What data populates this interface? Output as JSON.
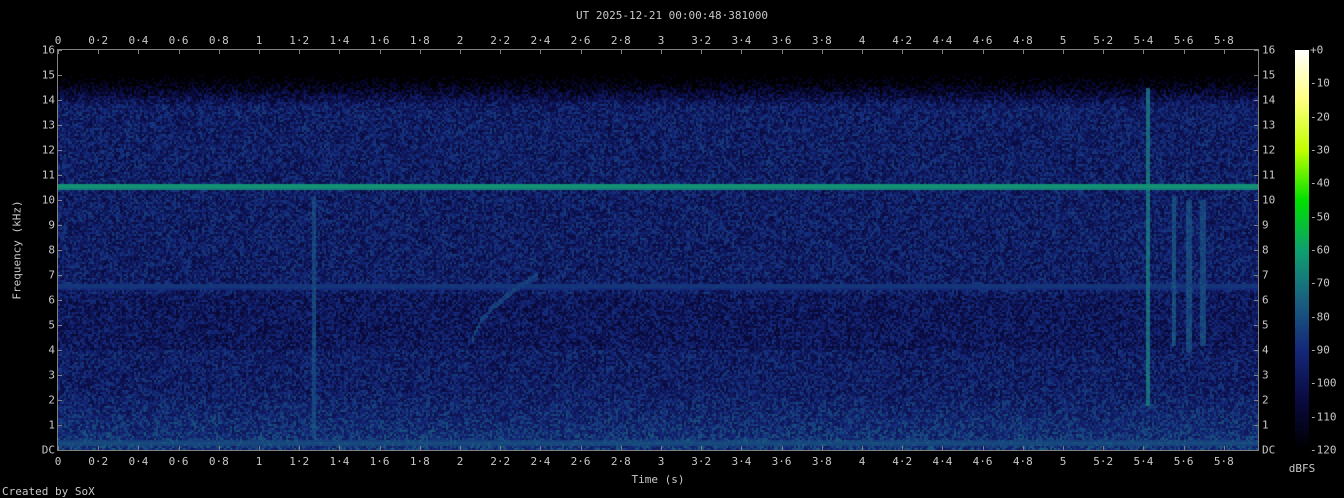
{
  "chart_data": {
    "type": "heatmap",
    "title": "UT 2025-12-21 00:00:48·381000",
    "xlabel": "Time (s)",
    "ylabel": "Frequency (kHz)",
    "xlim": [
      0,
      5.97
    ],
    "ylim": [
      0,
      16
    ],
    "x_ticks": [
      0,
      0.2,
      0.4,
      0.6,
      0.8,
      1,
      1.2,
      1.4,
      1.6,
      1.8,
      2,
      2.2,
      2.4,
      2.6,
      2.8,
      3,
      3.2,
      3.4,
      3.6,
      3.8,
      4,
      4.2,
      4.4,
      4.6,
      4.8,
      5,
      5.2,
      5.4,
      5.6,
      5.8
    ],
    "x_tick_labels": [
      "0",
      "0·2",
      "0·4",
      "0·6",
      "0·8",
      "1",
      "1·2",
      "1·4",
      "1·6",
      "1·8",
      "2",
      "2·2",
      "2·4",
      "2·6",
      "2·8",
      "3",
      "3·2",
      "3·4",
      "3·6",
      "3·8",
      "4",
      "4·2",
      "4·4",
      "4·6",
      "4·8",
      "5",
      "5·2",
      "5·4",
      "5·6",
      "5·8"
    ],
    "y_ticks": [
      0,
      1,
      2,
      3,
      4,
      5,
      6,
      7,
      8,
      9,
      10,
      11,
      12,
      13,
      14,
      15,
      16
    ],
    "y_tick_labels": [
      "DC",
      "1",
      "2",
      "3",
      "4",
      "5",
      "6",
      "7",
      "8",
      "9",
      "10",
      "11",
      "12",
      "13",
      "14",
      "15",
      "16"
    ],
    "colorbar": {
      "unit": "dBFS",
      "range": [
        -120,
        0
      ],
      "ticks": [
        0,
        -10,
        -20,
        -30,
        -40,
        -50,
        -60,
        -70,
        -80,
        -90,
        -100,
        -110,
        -120
      ],
      "tick_labels": [
        "+0",
        "-10",
        "-20",
        "-30",
        "-40",
        "-50",
        "-60",
        "-70",
        "-80",
        "-90",
        "-100",
        "-110",
        "-120"
      ],
      "colors": [
        "#000000",
        "#0a0a40",
        "#14287a",
        "#1a6080",
        "#0fa070",
        "#00e000",
        "#c0ff00",
        "#ffff80",
        "#ffffff"
      ]
    },
    "noise_floor_dbfs": -95,
    "features": {
      "tones_khz": [
        {
          "freq": 10.6,
          "level_dbfs": -62
        },
        {
          "freq": 6.6,
          "level_dbfs": -85
        },
        {
          "freq": 0.3,
          "level_dbfs": -80
        }
      ],
      "clicks": [
        {
          "t": 1.27,
          "f_range": [
            0.5,
            10.2
          ],
          "level_dbfs": -82
        },
        {
          "t": 5.42,
          "f_range": [
            1.8,
            14.5
          ],
          "level_dbfs": -72
        },
        {
          "t": 5.55,
          "f_range": [
            4.2,
            10.2
          ],
          "level_dbfs": -80
        },
        {
          "t": 5.62,
          "f_range": [
            4.0,
            10.0
          ],
          "level_dbfs": -82
        },
        {
          "t": 5.69,
          "f_range": [
            4.2,
            10.0
          ],
          "level_dbfs": -82
        }
      ],
      "sweep": {
        "t_range": [
          2.05,
          2.38
        ],
        "f_range": [
          4.0,
          7.0
        ],
        "level_dbfs": -84
      }
    }
  },
  "footer": {
    "credit": "Created by SoX"
  }
}
